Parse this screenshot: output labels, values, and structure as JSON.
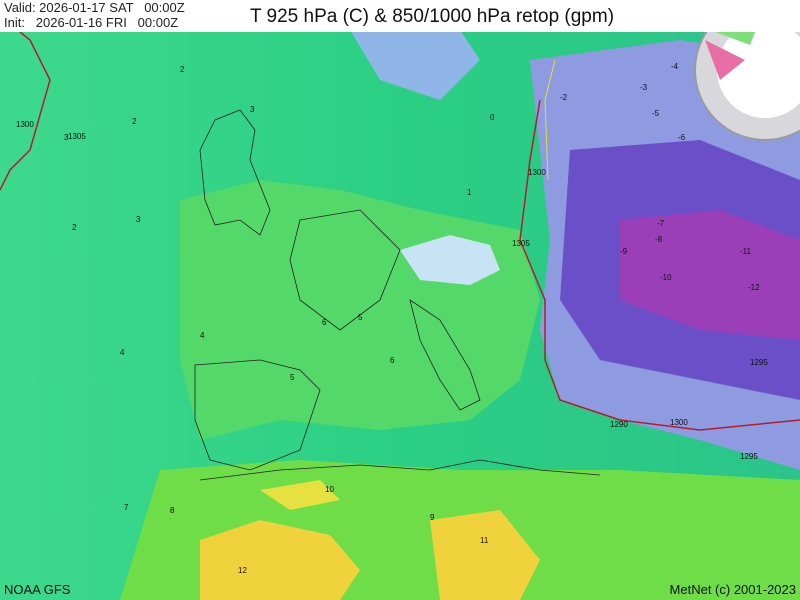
{
  "header": {
    "valid": "Valid: 2026-01-17 SAT   00:00Z",
    "init": "Init:   2026-01-16 FRI   00:00Z",
    "title": "T 925 hPa (C) & 850/1000 hPa retop (gpm)"
  },
  "footer": {
    "source": "NOAA GFS",
    "credit": "MetNet (c) 2001-2023"
  },
  "map": {
    "temp_labels": [
      "2",
      "2",
      "3",
      "3",
      "2",
      "4",
      "5",
      "6",
      "7",
      "8",
      "9",
      "10",
      "11",
      "12",
      "-4",
      "-5",
      "-6",
      "-7",
      "-8",
      "-9",
      "-10",
      "-11",
      "-12",
      "-3",
      "-2",
      "1",
      "0",
      "5",
      "6",
      "4",
      "3"
    ],
    "height_labels": [
      "1300",
      "1305",
      "1300",
      "1305",
      "1295",
      "1290",
      "1295",
      "1300"
    ]
  },
  "colors": {
    "warm": "#f0d23c",
    "mild": "#4fdc5a",
    "cool": "#2fcf8c",
    "cold": "#6a4fc8",
    "coldest": "#9a3fb8",
    "contour": "#b01e2e"
  }
}
